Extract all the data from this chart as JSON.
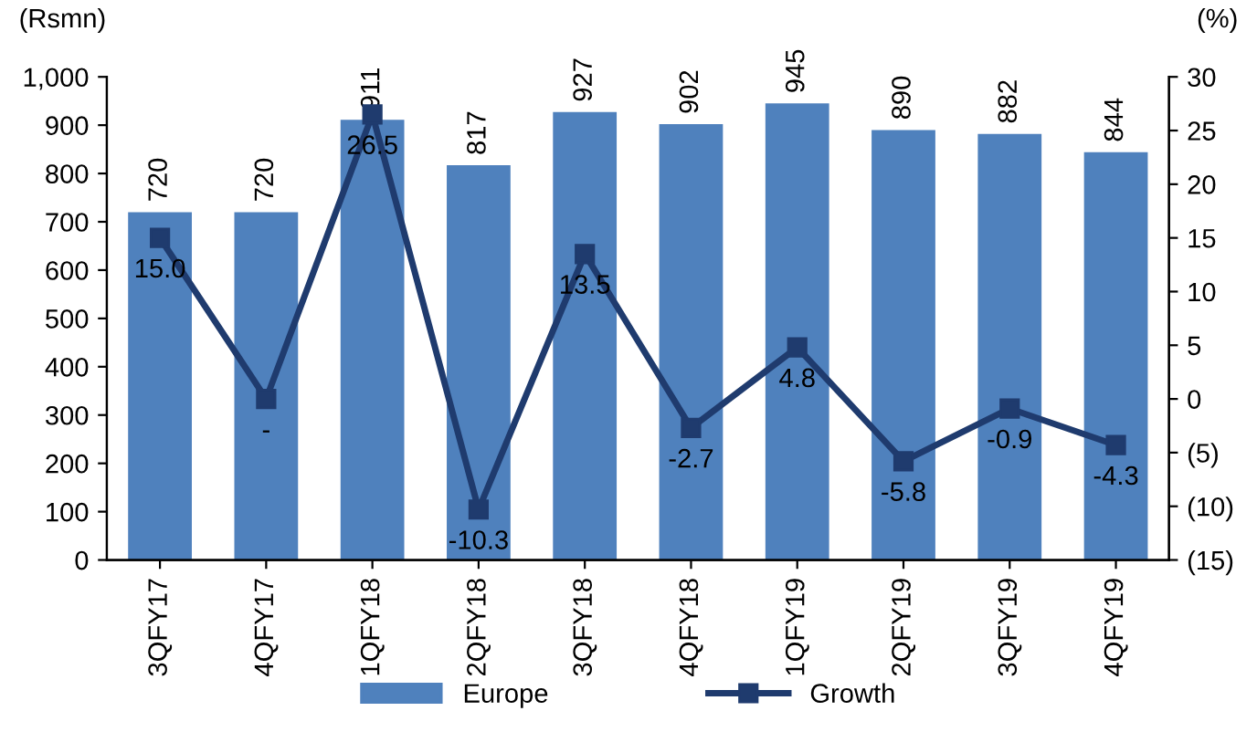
{
  "chart_data": {
    "type": "bar",
    "categories": [
      "3QFY17",
      "4QFY17",
      "1QFY18",
      "2QFY18",
      "3QFY18",
      "4QFY18",
      "1QFY19",
      "2QFY19",
      "3QFY19",
      "4QFY19"
    ],
    "ylabel": "(Rsmn)",
    "y2label": "(%)",
    "ylim": [
      0,
      1000
    ],
    "yticks": [
      0,
      100,
      200,
      300,
      400,
      500,
      600,
      700,
      800,
      900,
      {
        "value": 1000,
        "label": "1,000"
      }
    ],
    "y2lim": [
      -15,
      30
    ],
    "y2ticks": [
      {
        "value": -15,
        "label": "(15)"
      },
      {
        "value": -10,
        "label": "(10)"
      },
      {
        "value": -5,
        "label": "(5)"
      },
      0,
      5,
      10,
      15,
      20,
      25,
      30
    ],
    "series": [
      {
        "name": "Europe",
        "color": "#4f81bd",
        "values": [
          720,
          720,
          911,
          817,
          927,
          902,
          945,
          890,
          882,
          844
        ],
        "value_labels": [
          "720",
          "720",
          "911",
          "817",
          "927",
          "902",
          "945",
          "890",
          "882",
          "844"
        ]
      },
      {
        "name": "Growth",
        "type": "line",
        "axis": "y2",
        "color": "#1f3b6e",
        "marker": "square",
        "values": [
          15.0,
          0,
          26.5,
          -10.3,
          13.5,
          -2.7,
          4.8,
          -5.8,
          -0.9,
          -4.3
        ],
        "value_labels": [
          "15.0",
          "-",
          "26.5",
          "-10.3",
          "13.5",
          "-2.7",
          "4.8",
          "-5.8",
          "-0.9",
          "-4.3"
        ]
      }
    ],
    "legend": "bottom",
    "grid": false
  }
}
